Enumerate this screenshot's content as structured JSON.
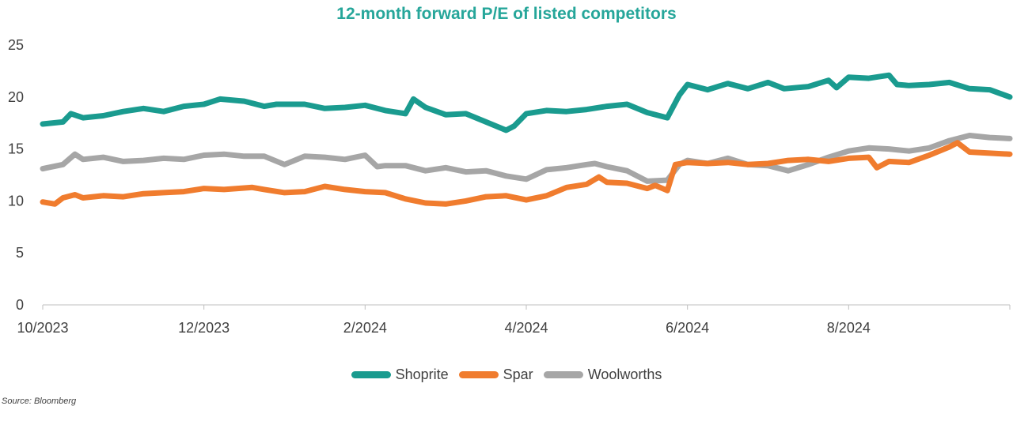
{
  "chart_data": {
    "type": "line",
    "title": "12-month forward P/E of listed competitors",
    "title_color": "#26a69a",
    "xlabel": "",
    "ylabel": "",
    "ylim": [
      0,
      25
    ],
    "yticks": [
      0,
      5,
      10,
      15,
      20,
      25
    ],
    "xlim": [
      0,
      12
    ],
    "xticks": [
      {
        "pos": 0,
        "label": "10/2023"
      },
      {
        "pos": 2,
        "label": "12/2023"
      },
      {
        "pos": 4,
        "label": "2/2024"
      },
      {
        "pos": 6,
        "label": "4/2024"
      },
      {
        "pos": 8,
        "label": "6/2024"
      },
      {
        "pos": 10,
        "label": "8/2024"
      }
    ],
    "grid": false,
    "legend_position": "bottom",
    "series": [
      {
        "name": "Shoprite",
        "color": "#1a9b8f",
        "x": [
          0,
          0.25,
          0.35,
          0.5,
          0.75,
          1.0,
          1.25,
          1.5,
          1.75,
          2.0,
          2.2,
          2.5,
          2.75,
          2.9,
          3.25,
          3.5,
          3.75,
          4.0,
          4.25,
          4.5,
          4.6,
          4.75,
          5.0,
          5.25,
          5.5,
          5.75,
          5.85,
          6.0,
          6.25,
          6.5,
          6.75,
          7.0,
          7.25,
          7.5,
          7.75,
          7.9,
          8.0,
          8.25,
          8.5,
          8.75,
          9.0,
          9.2,
          9.5,
          9.75,
          9.85,
          10.0,
          10.25,
          10.5,
          10.6,
          10.75,
          11.0,
          11.25,
          11.5,
          11.75,
          12.0
        ],
        "values": [
          17.4,
          17.6,
          18.4,
          18.0,
          18.2,
          18.6,
          18.9,
          18.6,
          19.1,
          19.3,
          19.8,
          19.6,
          19.1,
          19.3,
          19.3,
          18.9,
          19.0,
          19.2,
          18.7,
          18.4,
          19.8,
          19.0,
          18.3,
          18.4,
          17.6,
          16.8,
          17.2,
          18.4,
          18.7,
          18.6,
          18.8,
          19.1,
          19.3,
          18.5,
          18.0,
          20.2,
          21.2,
          20.7,
          21.3,
          20.8,
          21.4,
          20.8,
          21.0,
          21.6,
          20.9,
          21.9,
          21.8,
          22.1,
          21.2,
          21.1,
          21.2,
          21.4,
          20.8,
          20.7,
          20.0
        ]
      },
      {
        "name": "Spar",
        "color": "#f07c2e",
        "x": [
          0,
          0.15,
          0.25,
          0.4,
          0.5,
          0.75,
          1.0,
          1.25,
          1.5,
          1.75,
          2.0,
          2.25,
          2.6,
          2.75,
          3.0,
          3.25,
          3.5,
          3.75,
          4.0,
          4.25,
          4.5,
          4.75,
          5.0,
          5.25,
          5.5,
          5.75,
          6.0,
          6.25,
          6.5,
          6.75,
          6.9,
          7.0,
          7.25,
          7.5,
          7.6,
          7.75,
          7.85,
          8.0,
          8.25,
          8.5,
          8.75,
          9.0,
          9.25,
          9.5,
          9.75,
          10.0,
          10.25,
          10.35,
          10.5,
          10.75,
          11.0,
          11.25,
          11.35,
          11.5,
          11.75,
          12.0
        ],
        "values": [
          9.9,
          9.7,
          10.3,
          10.6,
          10.3,
          10.5,
          10.4,
          10.7,
          10.8,
          10.9,
          11.2,
          11.1,
          11.3,
          11.1,
          10.8,
          10.9,
          11.4,
          11.1,
          10.9,
          10.8,
          10.2,
          9.8,
          9.7,
          10.0,
          10.4,
          10.5,
          10.1,
          10.5,
          11.3,
          11.6,
          12.3,
          11.8,
          11.7,
          11.2,
          11.5,
          11.0,
          13.5,
          13.7,
          13.6,
          13.7,
          13.5,
          13.6,
          13.9,
          14.0,
          13.8,
          14.1,
          14.2,
          13.2,
          13.8,
          13.7,
          14.4,
          15.2,
          15.6,
          14.7,
          14.6,
          14.5
        ]
      },
      {
        "name": "Woolworths",
        "color": "#a6a6a6",
        "x": [
          0,
          0.25,
          0.4,
          0.5,
          0.75,
          1.0,
          1.25,
          1.5,
          1.75,
          2.0,
          2.25,
          2.5,
          2.75,
          3.0,
          3.25,
          3.5,
          3.75,
          4.0,
          4.15,
          4.25,
          4.5,
          4.75,
          5.0,
          5.25,
          5.5,
          5.75,
          6.0,
          6.25,
          6.5,
          6.75,
          6.85,
          7.0,
          7.25,
          7.5,
          7.75,
          7.9,
          8.0,
          8.25,
          8.5,
          8.75,
          9.0,
          9.25,
          9.5,
          9.75,
          10.0,
          10.25,
          10.5,
          10.75,
          11.0,
          11.25,
          11.5,
          11.75,
          12.0
        ],
        "values": [
          13.1,
          13.5,
          14.5,
          14.0,
          14.2,
          13.8,
          13.9,
          14.1,
          14.0,
          14.4,
          14.5,
          14.3,
          14.3,
          13.5,
          14.3,
          14.2,
          14.0,
          14.4,
          13.3,
          13.4,
          13.4,
          12.9,
          13.2,
          12.8,
          12.9,
          12.4,
          12.1,
          13.0,
          13.2,
          13.5,
          13.6,
          13.3,
          12.9,
          11.9,
          12.0,
          13.5,
          13.9,
          13.6,
          14.1,
          13.5,
          13.4,
          12.9,
          13.5,
          14.2,
          14.8,
          15.1,
          15.0,
          14.8,
          15.1,
          15.8,
          16.3,
          16.1,
          16.0
        ]
      }
    ],
    "source": "Source: Bloomberg"
  }
}
